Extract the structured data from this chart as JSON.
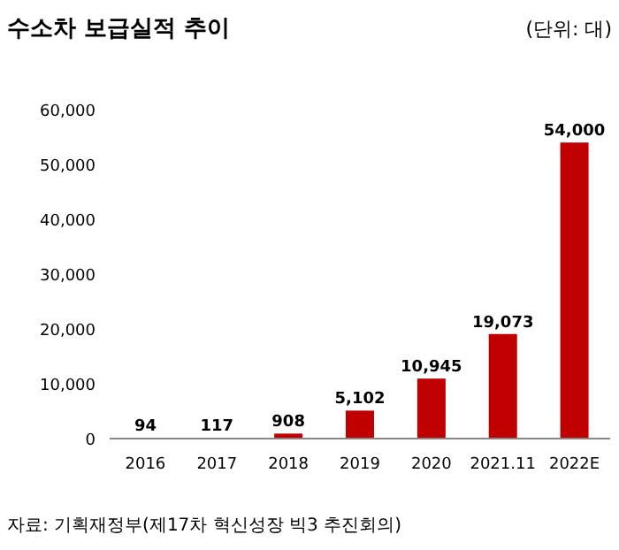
{
  "chart_data": {
    "type": "bar",
    "title": "수소차 보급실적 추이",
    "subtitle": "(단위: 대)",
    "categories": [
      "2016",
      "2017",
      "2018",
      "2019",
      "2020",
      "2021.11",
      "2022E"
    ],
    "values": [
      94,
      117,
      908,
      5102,
      10945,
      19073,
      54000
    ],
    "color": "#c00000",
    "value_labels": [
      "94",
      "117",
      "908",
      "5,102",
      "10,945",
      "19,073",
      "54,000"
    ],
    "ylim": [
      0,
      60000
    ],
    "yticks": [
      {
        "value": 0,
        "label": "0"
      },
      {
        "value": 10000,
        "label": "10,000"
      },
      {
        "value": 20000,
        "label": "20,000"
      },
      {
        "value": 30000,
        "label": "30,000"
      },
      {
        "value": 40000,
        "label": "40,000"
      },
      {
        "value": 50000,
        "label": "50,000"
      },
      {
        "value": 60000,
        "label": "60,000"
      }
    ],
    "annotations": [
      "자료: 기획재정부(제17차 혁신성장 빅3 추진회의)"
    ]
  }
}
